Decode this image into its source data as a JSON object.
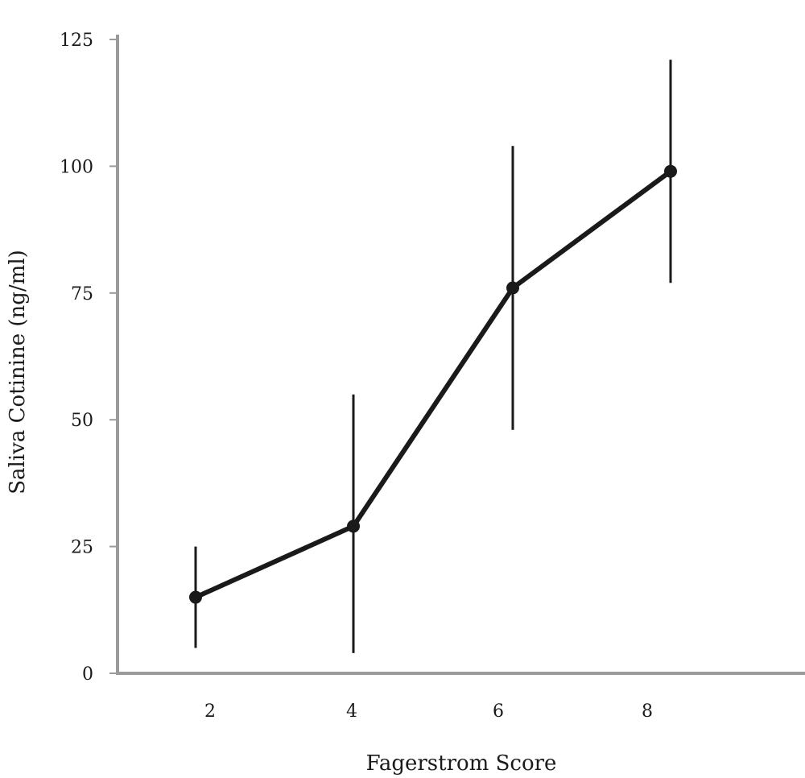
{
  "chart_data": {
    "type": "line",
    "title": "",
    "xlabel": "Fagerstrom Score",
    "ylabel": "Saliva Cotinine (ng/ml)",
    "x_ticks": [
      "2",
      "4",
      "6",
      "8"
    ],
    "y_ticks": [
      "0",
      "25",
      "50",
      "75",
      "100",
      "125"
    ],
    "ylim": [
      0,
      125
    ],
    "grid": false,
    "legend": "none",
    "series": [
      {
        "color": "#1a1a1a",
        "points": [
          {
            "x": "2",
            "y": 15,
            "err_low": 5,
            "err_high": 25
          },
          {
            "x": "4",
            "y": 29,
            "err_low": 4,
            "err_high": 55
          },
          {
            "x": "6",
            "y": 76,
            "err_low": 48,
            "err_high": 104
          },
          {
            "x": "8",
            "y": 99,
            "err_low": 77,
            "err_high": 121
          }
        ]
      }
    ],
    "axis_color": "#9a9a9a"
  }
}
